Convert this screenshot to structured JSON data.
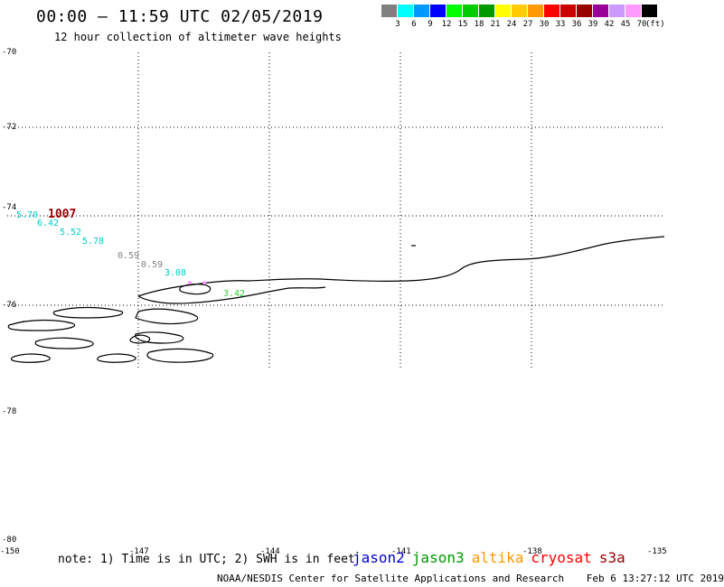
{
  "header": {
    "title": "00:00 – 11:59 UTC 02/05/2019",
    "subtitle": "12 hour collection of altimeter wave heights"
  },
  "colorbar": {
    "colors": [
      "#808080",
      "#00ffff",
      "#0099ff",
      "#0000ff",
      "#00ff00",
      "#00cc00",
      "#009900",
      "#ffff00",
      "#ffcc00",
      "#ff9900",
      "#ff0000",
      "#cc0000",
      "#990000",
      "#990099",
      "#cc99ff",
      "#ff99ff",
      "#000000"
    ],
    "labels": [
      "3",
      "6",
      "9",
      "12",
      "15",
      "18",
      "21",
      "24",
      "27",
      "30",
      "33",
      "36",
      "39",
      "42",
      "45",
      "70"
    ],
    "unit": "(ft)"
  },
  "axes": {
    "lat_labels": [
      "-70",
      "-72",
      "-74",
      "-76",
      "-78",
      "-80"
    ],
    "lat_label_extra": "-78",
    "lon_labels": [
      "-150",
      "-147",
      "-144",
      "-141",
      "-138",
      "-135"
    ]
  },
  "observations": {
    "pressure_label": "1007",
    "wave_heights": [
      {
        "value": "5.70",
        "color": "#00cccc"
      },
      {
        "value": "6.42",
        "color": "#00cccc"
      },
      {
        "value": "5.52",
        "color": "#00cccc"
      },
      {
        "value": "5.78",
        "color": "#00cccc"
      },
      {
        "value": "0.59",
        "color": "#808080"
      },
      {
        "value": "0.59",
        "color": "#808080"
      },
      {
        "value": "3.08",
        "color": "#00cccc"
      },
      {
        "value": "3.42",
        "color": "#33cc33"
      }
    ]
  },
  "notes": {
    "note": "note: 1) Time is in UTC; 2) SWH is in feet",
    "satellites": [
      {
        "name": "jason2",
        "color": "#0000cc"
      },
      {
        "name": "jason3",
        "color": "#009900"
      },
      {
        "name": "altika",
        "color": "#ff9900"
      },
      {
        "name": "cryosat",
        "color": "#ff0000"
      },
      {
        "name": "s3a",
        "color": "#990000"
      }
    ],
    "credit": "NOAA/NESDIS Center for Satellite Applications and Research",
    "timestamp": "Feb  6 13:27:12 UTC 2019"
  }
}
